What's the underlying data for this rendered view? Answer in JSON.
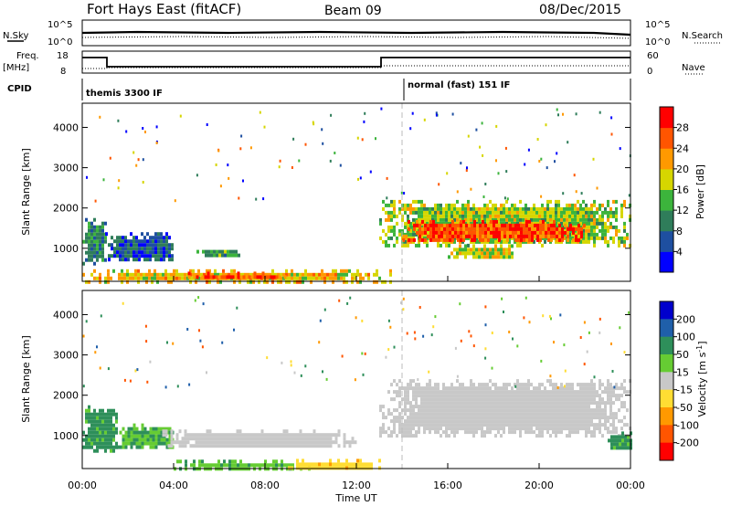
{
  "header": {
    "title": "Fort Hays East (fitACF)",
    "beam": "Beam 09",
    "date": "08/Dec/2015"
  },
  "nsky_panel": {
    "left_label": "N.Sky",
    "left_ticks": [
      "10^5",
      "10^0"
    ],
    "right_label": "N.Search",
    "right_ticks": [
      "10^5",
      "10^0"
    ]
  },
  "freq_panel": {
    "left_label": "Freq.",
    "left_unit": "[MHz]",
    "left_ticks": [
      "18",
      "8"
    ],
    "right_label": "Nave",
    "right_ticks": [
      "60",
      "0"
    ]
  },
  "cpid": {
    "label": "CPID",
    "segments": [
      {
        "text": "themis 3300 IF",
        "start_hour": 0
      },
      {
        "text": "normal (fast) 151 IF",
        "start_hour": 14
      }
    ]
  },
  "colors": {
    "power": [
      "#0000ff",
      "#1e4fa0",
      "#2f7d5a",
      "#3cb43c",
      "#d6d600",
      "#ff9900",
      "#ff5500",
      "#ff0000"
    ],
    "velocity": [
      "#0000cc",
      "#1f5faa",
      "#2e8f5a",
      "#66cc33",
      "#c8c8c8",
      "#ffdd33",
      "#ff9900",
      "#ff5500",
      "#ff0000"
    ],
    "gray": "#c8c8c8"
  },
  "chart_data": [
    {
      "type": "heatmap",
      "name": "power",
      "xlabel": "",
      "ylabel": "Slant Range [km]",
      "xlim": [
        0,
        24
      ],
      "ylim": [
        180,
        4600
      ],
      "yticks": [
        1000,
        2000,
        3000,
        4000
      ],
      "colorbar": {
        "label": "Power [dB]",
        "ticks": [
          4,
          8,
          12,
          16,
          20,
          24,
          28
        ],
        "range": [
          0,
          32
        ]
      },
      "echo_regions": [
        {
          "x": [
            0.0,
            1.0
          ],
          "y": [
            650,
            1750
          ],
          "value": 10
        },
        {
          "x": [
            1.0,
            4.0
          ],
          "y": [
            700,
            1400
          ],
          "value": 7
        },
        {
          "x": [
            5.0,
            7.0
          ],
          "y": [
            800,
            1050
          ],
          "value": 12
        },
        {
          "x": [
            0.0,
            13.5
          ],
          "y": [
            200,
            480
          ],
          "value": 20
        },
        {
          "x": [
            4.5,
            9.0
          ],
          "y": [
            250,
            420
          ],
          "value": 26
        },
        {
          "x": [
            13.0,
            24.0
          ],
          "y": [
            1100,
            2200
          ],
          "value": 16
        },
        {
          "x": [
            14.0,
            22.0
          ],
          "y": [
            1200,
            1700
          ],
          "value": 27
        },
        {
          "x": [
            16.0,
            19.0
          ],
          "y": [
            800,
            1100
          ],
          "value": 18
        }
      ]
    },
    {
      "type": "heatmap",
      "name": "velocity",
      "xlabel": "Time UT",
      "ylabel": "Slant Range [km]",
      "xlim": [
        0,
        24
      ],
      "ylim": [
        180,
        4600
      ],
      "yticks": [
        1000,
        2000,
        3000,
        4000
      ],
      "xticks": [
        "00:00",
        "04:00",
        "08:00",
        "12:00",
        "16:00",
        "20:00",
        "00:00"
      ],
      "colorbar": {
        "label": "Velocity [m s^-1]",
        "ticks": [
          200,
          100,
          50,
          15,
          -15,
          -50,
          -100,
          -200
        ]
      },
      "echo_regions": [
        {
          "x": [
            0.0,
            1.5
          ],
          "y": [
            650,
            1750
          ],
          "value": 60
        },
        {
          "x": [
            1.5,
            4.0
          ],
          "y": [
            700,
            1300
          ],
          "value": 50
        },
        {
          "x": [
            3.5,
            12.0
          ],
          "y": [
            700,
            1150
          ],
          "value": 0
        },
        {
          "x": [
            4.0,
            10.0
          ],
          "y": [
            200,
            400
          ],
          "value": 40
        },
        {
          "x": [
            9.0,
            13.0
          ],
          "y": [
            200,
            420
          ],
          "value": -40
        },
        {
          "x": [
            13.0,
            24.0
          ],
          "y": [
            1000,
            2400
          ],
          "value": 0
        },
        {
          "x": [
            23.0,
            24.0
          ],
          "y": [
            650,
            1100
          ],
          "value": 60
        }
      ]
    }
  ]
}
